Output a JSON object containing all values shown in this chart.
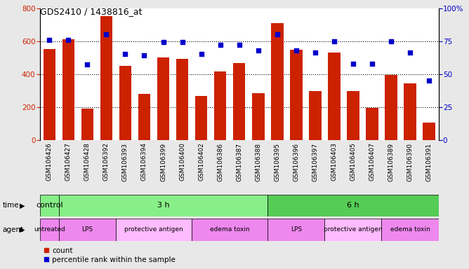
{
  "title": "GDS2410 / 1438816_at",
  "samples": [
    "GSM106426",
    "GSM106427",
    "GSM106428",
    "GSM106392",
    "GSM106393",
    "GSM106394",
    "GSM106399",
    "GSM106400",
    "GSM106402",
    "GSM106386",
    "GSM106387",
    "GSM106388",
    "GSM106395",
    "GSM106396",
    "GSM106397",
    "GSM106403",
    "GSM106405",
    "GSM106407",
    "GSM106389",
    "GSM106390",
    "GSM106391"
  ],
  "counts": [
    550,
    610,
    190,
    750,
    450,
    280,
    500,
    490,
    265,
    415,
    465,
    285,
    710,
    545,
    295,
    530,
    295,
    195,
    395,
    345,
    105
  ],
  "percentiles": [
    76,
    76,
    57,
    80,
    65,
    64,
    74,
    74,
    65,
    72,
    72,
    68,
    80,
    68,
    66,
    75,
    58,
    58,
    75,
    66,
    45
  ],
  "bar_color": "#cc2200",
  "dot_color": "#0000cc",
  "ylim_left": [
    0,
    800
  ],
  "ylim_right": [
    0,
    100
  ],
  "yticks_left": [
    0,
    200,
    400,
    600,
    800
  ],
  "yticks_right": [
    0,
    25,
    50,
    75,
    100
  ],
  "ytick_labels_right": [
    "0",
    "25",
    "50",
    "75",
    "100%"
  ],
  "grid_values": [
    200,
    400,
    600
  ],
  "time_groups": [
    {
      "label": "control",
      "start": 0,
      "end": 1,
      "color": "#88ee88"
    },
    {
      "label": "3 h",
      "start": 1,
      "end": 12,
      "color": "#88ee88"
    },
    {
      "label": "6 h",
      "start": 12,
      "end": 21,
      "color": "#55cc55"
    }
  ],
  "agent_groups": [
    {
      "label": "untreated",
      "start": 0,
      "end": 1,
      "color": "#ee88ee"
    },
    {
      "label": "LPS",
      "start": 1,
      "end": 4,
      "color": "#ee88ee"
    },
    {
      "label": "protective antigen",
      "start": 4,
      "end": 8,
      "color": "#ffbbff"
    },
    {
      "label": "edema toxin",
      "start": 8,
      "end": 12,
      "color": "#ee88ee"
    },
    {
      "label": "LPS",
      "start": 12,
      "end": 15,
      "color": "#ee88ee"
    },
    {
      "label": "protective antigen",
      "start": 15,
      "end": 18,
      "color": "#ffbbff"
    },
    {
      "label": "edema toxin",
      "start": 18,
      "end": 21,
      "color": "#ee88ee"
    }
  ],
  "bg_color": "#e8e8e8",
  "plot_bg": "#ffffff"
}
